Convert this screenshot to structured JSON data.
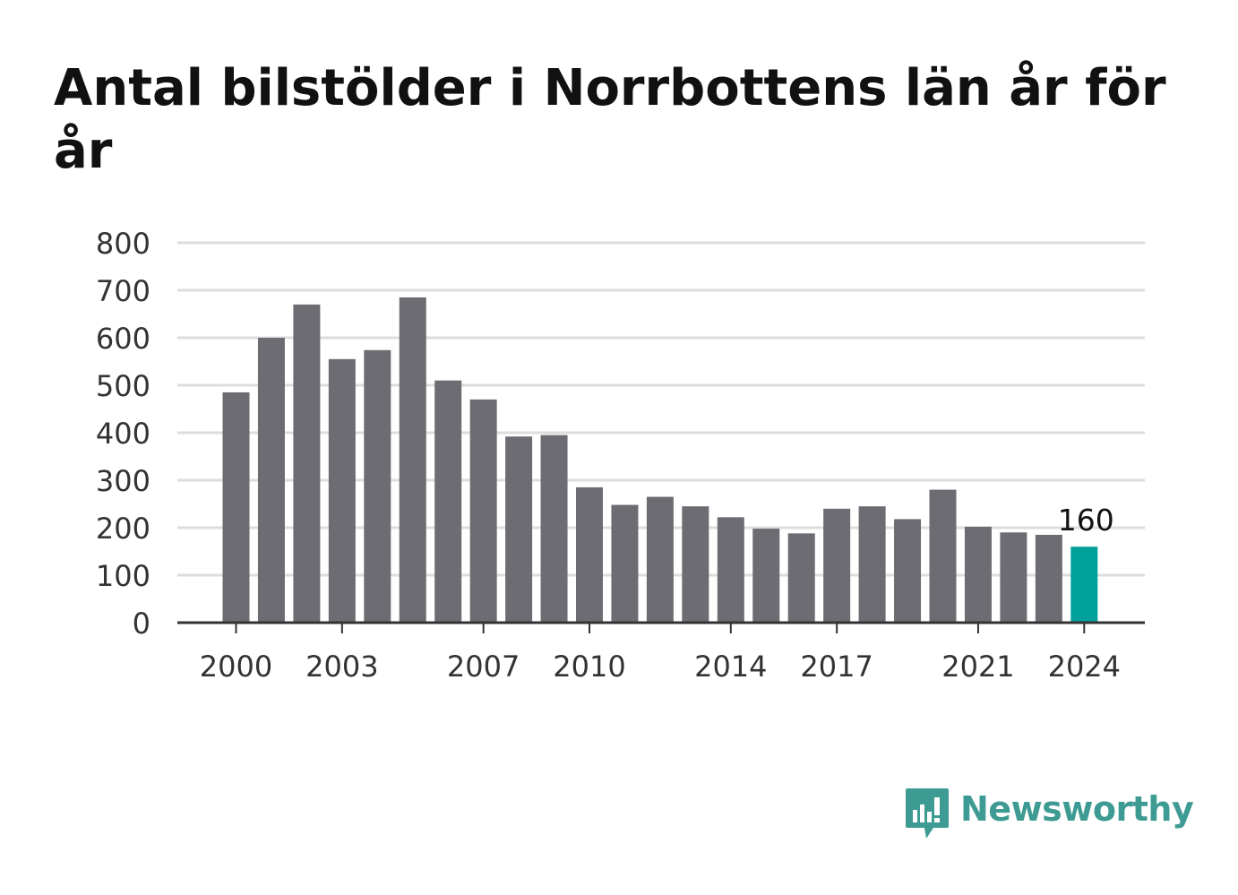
{
  "title": "Antal bilstölder i Norrbottens län år för år",
  "brand": {
    "name": "Newsworthy",
    "icon": "chart-speech-bubble-icon",
    "color": "#3e9b93"
  },
  "colors": {
    "bar": "#6d6c72",
    "highlight": "#00a19a",
    "grid": "#dddddd",
    "axis": "#333333",
    "label": "#333333"
  },
  "chart_data": {
    "type": "bar",
    "title": "Antal bilstölder i Norrbottens län år för år",
    "xlabel": "",
    "ylabel": "",
    "ylim": [
      0,
      800
    ],
    "yticks": [
      0,
      100,
      200,
      300,
      400,
      500,
      600,
      700,
      800
    ],
    "grid": true,
    "categories": [
      2000,
      2001,
      2002,
      2003,
      2004,
      2005,
      2006,
      2007,
      2008,
      2009,
      2010,
      2011,
      2012,
      2013,
      2014,
      2015,
      2016,
      2017,
      2018,
      2019,
      2020,
      2021,
      2022,
      2023,
      2024
    ],
    "x_tick_labels": [
      2000,
      2003,
      2007,
      2010,
      2014,
      2017,
      2021,
      2024
    ],
    "values": [
      485,
      600,
      670,
      555,
      574,
      685,
      510,
      470,
      392,
      395,
      285,
      248,
      265,
      245,
      222,
      198,
      188,
      240,
      245,
      218,
      280,
      202,
      190,
      185,
      160
    ],
    "highlight": {
      "category": 2024,
      "label": "160"
    }
  }
}
